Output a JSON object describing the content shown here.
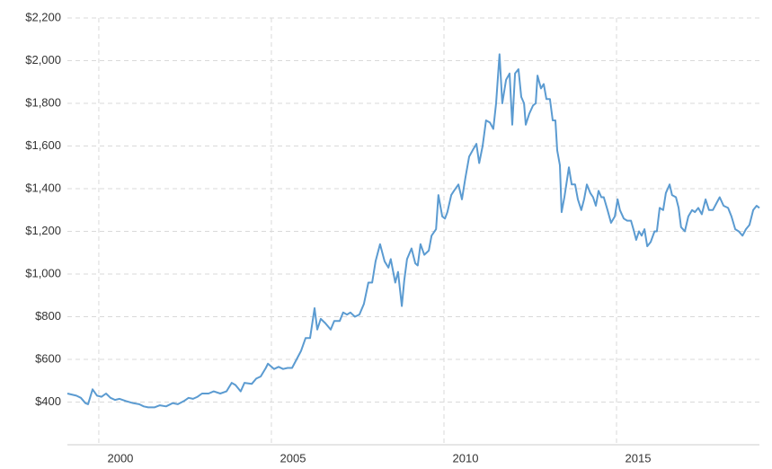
{
  "chart_data": {
    "type": "line",
    "x": [
      1999.09,
      1999.35,
      1999.48,
      1999.61,
      1999.69,
      1999.82,
      1999.95,
      2000.08,
      2000.21,
      2000.34,
      2000.47,
      2000.6,
      2000.78,
      2000.99,
      2001.17,
      2001.3,
      2001.43,
      2001.61,
      2001.77,
      2001.95,
      2002.14,
      2002.29,
      2002.47,
      2002.6,
      2002.73,
      2002.86,
      2002.99,
      2003.18,
      2003.33,
      2003.52,
      2003.7,
      2003.85,
      2003.96,
      2004.11,
      2004.22,
      2004.43,
      2004.56,
      2004.69,
      2004.84,
      2004.9,
      2005.08,
      2005.21,
      2005.34,
      2005.47,
      2005.6,
      2005.73,
      2005.86,
      2005.99,
      2006.12,
      2006.25,
      2006.33,
      2006.43,
      2006.56,
      2006.72,
      2006.82,
      2006.98,
      2007.08,
      2007.19,
      2007.29,
      2007.42,
      2007.55,
      2007.68,
      2007.81,
      2007.92,
      2008.02,
      2008.15,
      2008.28,
      2008.39,
      2008.46,
      2008.59,
      2008.67,
      2008.78,
      2008.85,
      2008.93,
      2009.06,
      2009.17,
      2009.24,
      2009.32,
      2009.43,
      2009.56,
      2009.64,
      2009.77,
      2009.84,
      2009.95,
      2010.03,
      2010.1,
      2010.21,
      2010.29,
      2010.42,
      2010.52,
      2010.62,
      2010.73,
      2010.83,
      2010.94,
      2011.02,
      2011.12,
      2011.22,
      2011.33,
      2011.43,
      2011.51,
      2011.61,
      2011.69,
      2011.8,
      2011.9,
      2011.98,
      2012.06,
      2012.16,
      2012.24,
      2012.32,
      2012.37,
      2012.47,
      2012.58,
      2012.66,
      2012.71,
      2012.81,
      2012.89,
      2012.97,
      2013.07,
      2013.15,
      2013.23,
      2013.28,
      2013.36,
      2013.41,
      2013.49,
      2013.62,
      2013.7,
      2013.8,
      2013.88,
      2013.98,
      2014.06,
      2014.14,
      2014.24,
      2014.32,
      2014.4,
      2014.48,
      2014.56,
      2014.63,
      2014.74,
      2014.84,
      2014.95,
      2015.03,
      2015.1,
      2015.21,
      2015.31,
      2015.42,
      2015.49,
      2015.57,
      2015.65,
      2015.73,
      2015.81,
      2015.89,
      2015.99,
      2016.1,
      2016.17,
      2016.25,
      2016.35,
      2016.43,
      2016.54,
      2016.61,
      2016.72,
      2016.8,
      2016.87,
      2016.98,
      2017.08,
      2017.19,
      2017.27,
      2017.37,
      2017.47,
      2017.58,
      2017.68,
      2017.79,
      2017.89,
      2017.99,
      2018.1,
      2018.23,
      2018.33,
      2018.44,
      2018.54,
      2018.65,
      2018.75,
      2018.85,
      2018.96,
      2019.06,
      2019.14
    ],
    "series": [
      {
        "color": "#5b9bd1",
        "values": [
          440,
          430,
          420,
          395,
          390,
          460,
          430,
          425,
          440,
          420,
          410,
          415,
          405,
          395,
          390,
          380,
          375,
          375,
          385,
          380,
          395,
          390,
          405,
          420,
          415,
          425,
          440,
          440,
          450,
          440,
          450,
          490,
          480,
          450,
          490,
          485,
          510,
          520,
          560,
          580,
          555,
          565,
          555,
          560,
          560,
          600,
          640,
          700,
          700,
          840,
          740,
          790,
          770,
          740,
          780,
          780,
          820,
          810,
          820,
          800,
          810,
          860,
          960,
          960,
          1060,
          1140,
          1060,
          1030,
          1070,
          960,
          1010,
          850,
          970,
          1070,
          1120,
          1050,
          1040,
          1140,
          1090,
          1110,
          1180,
          1210,
          1370,
          1270,
          1260,
          1290,
          1370,
          1390,
          1420,
          1350,
          1450,
          1550,
          1580,
          1610,
          1520,
          1600,
          1720,
          1710,
          1680,
          1800,
          2030,
          1800,
          1910,
          1940,
          1700,
          1940,
          1960,
          1830,
          1800,
          1700,
          1750,
          1790,
          1800,
          1930,
          1870,
          1890,
          1820,
          1820,
          1720,
          1720,
          1580,
          1510,
          1290,
          1360,
          1500,
          1420,
          1420,
          1350,
          1300,
          1350,
          1420,
          1380,
          1360,
          1320,
          1390,
          1360,
          1360,
          1300,
          1240,
          1270,
          1350,
          1300,
          1260,
          1250,
          1250,
          1210,
          1160,
          1200,
          1180,
          1210,
          1130,
          1150,
          1200,
          1200,
          1310,
          1300,
          1380,
          1420,
          1370,
          1360,
          1310,
          1220,
          1200,
          1270,
          1300,
          1290,
          1310,
          1280,
          1350,
          1300,
          1300,
          1330,
          1360,
          1320,
          1310,
          1270,
          1210,
          1200,
          1180,
          1210,
          1230,
          1300,
          1320,
          1310
        ]
      }
    ],
    "xlim": [
      1999.09,
      2019.14
    ],
    "xticks": [
      2000,
      2005,
      2010,
      2015
    ],
    "ylim": [
      200,
      2200
    ],
    "yticks": [
      {
        "value": 400,
        "label": "$400"
      },
      {
        "value": 600,
        "label": "$600"
      },
      {
        "value": 800,
        "label": "$800"
      },
      {
        "value": 1000,
        "label": "$1,000"
      },
      {
        "value": 1200,
        "label": "$1,200"
      },
      {
        "value": 1400,
        "label": "$1,400"
      },
      {
        "value": 1600,
        "label": "$1,600"
      },
      {
        "value": 1800,
        "label": "$1,800"
      },
      {
        "value": 2000,
        "label": "$2,000"
      },
      {
        "value": 2200,
        "label": "$2,200"
      }
    ],
    "grid": true
  }
}
